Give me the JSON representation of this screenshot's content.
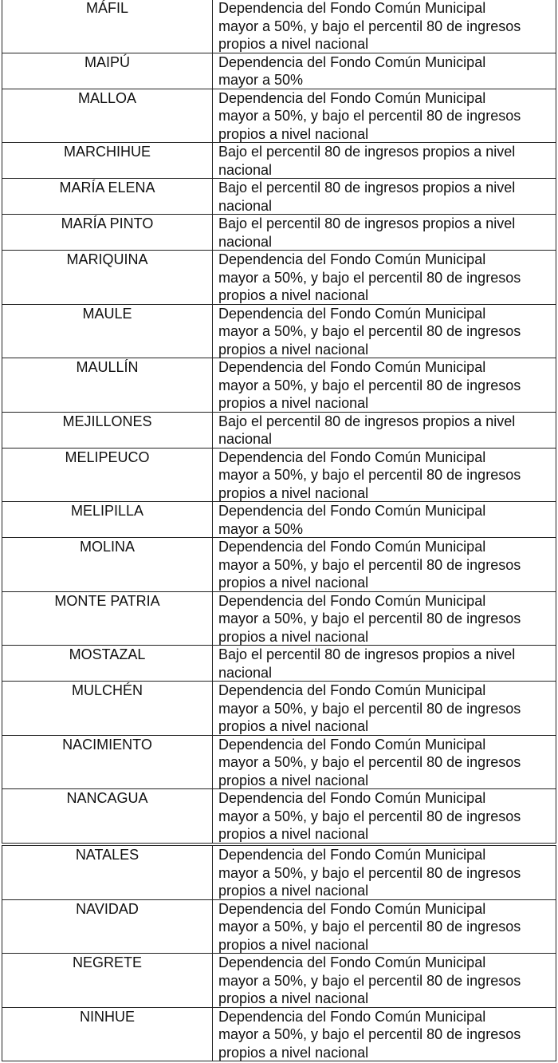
{
  "tables": [
    {
      "rows": [
        {
          "name": "MÁFIL",
          "lines": [
            "Dependencia del Fondo Común Municipal",
            "mayor a 50%, y bajo el percentil 80 de ingresos",
            "propios a nivel nacional"
          ]
        },
        {
          "name": "MAIPÚ",
          "lines": [
            "Dependencia del Fondo Común Municipal",
            "mayor a 50%"
          ]
        },
        {
          "name": "MALLOA",
          "lines": [
            "Dependencia del Fondo Común Municipal",
            "mayor a 50%, y bajo el percentil 80 de ingresos",
            "propios a nivel nacional"
          ]
        },
        {
          "name": "MARCHIHUE",
          "lines": [
            "Bajo el percentil 80 de ingresos propios a nivel",
            "nacional"
          ]
        },
        {
          "name": "MARÍA ELENA",
          "lines": [
            "Bajo el percentil 80 de ingresos propios a nivel",
            "nacional"
          ]
        },
        {
          "name": "MARÍA PINTO",
          "lines": [
            "Bajo el percentil 80 de ingresos propios a nivel",
            "nacional"
          ]
        },
        {
          "name": "MARIQUINA",
          "lines": [
            "Dependencia del Fondo Común Municipal",
            "mayor a 50%, y bajo el percentil 80 de ingresos",
            "propios a nivel nacional"
          ]
        },
        {
          "name": "MAULE",
          "lines": [
            "Dependencia del Fondo Común Municipal",
            "mayor a 50%, y bajo el percentil 80 de ingresos",
            "propios a nivel nacional"
          ]
        },
        {
          "name": "MAULLÍN",
          "lines": [
            "Dependencia del Fondo Común Municipal",
            "mayor a 50%, y bajo el percentil 80 de ingresos",
            "propios a nivel nacional"
          ]
        },
        {
          "name": "MEJILLONES",
          "lines": [
            "Bajo el percentil 80 de ingresos propios a nivel",
            "nacional"
          ]
        },
        {
          "name": "MELIPEUCO",
          "lines": [
            "Dependencia del Fondo Común Municipal",
            "mayor a 50%, y bajo el percentil 80 de ingresos",
            "propios a nivel nacional"
          ]
        },
        {
          "name": "MELIPILLA",
          "lines": [
            "Dependencia del Fondo Común Municipal",
            "mayor a 50%"
          ]
        },
        {
          "name": "MOLINA",
          "lines": [
            "Dependencia del Fondo Común Municipal",
            "mayor a 50%, y bajo el percentil 80 de ingresos",
            "propios a nivel nacional"
          ]
        },
        {
          "name": "MONTE PATRIA",
          "lines": [
            "Dependencia del Fondo Común Municipal",
            "mayor a 50%, y bajo el percentil 80 de ingresos",
            "propios a nivel nacional"
          ]
        },
        {
          "name": "MOSTAZAL",
          "lines": [
            "Bajo el percentil 80 de ingresos propios a nivel",
            "nacional"
          ]
        },
        {
          "name": "MULCHÉN",
          "lines": [
            "Dependencia del Fondo Común Municipal",
            "mayor a 50%, y bajo el percentil 80 de ingresos",
            "propios a nivel nacional"
          ]
        },
        {
          "name": "NACIMIENTO",
          "lines": [
            "Dependencia del Fondo Común Municipal",
            "mayor a 50%, y bajo el percentil 80 de ingresos",
            "propios a nivel nacional"
          ]
        },
        {
          "name": "NANCAGUA",
          "lines": [
            "Dependencia del Fondo Común Municipal",
            "mayor a 50%, y bajo el percentil 80 de ingresos",
            "propios a nivel nacional"
          ]
        }
      ]
    },
    {
      "rows": [
        {
          "name": "NATALES",
          "lines": [
            "Dependencia del Fondo Común Municipal",
            "mayor a 50%, y bajo el percentil 80 de ingresos",
            "propios a nivel nacional"
          ]
        },
        {
          "name": "NAVIDAD",
          "lines": [
            "Dependencia del Fondo Común Municipal",
            "mayor a 50%, y bajo el percentil 80 de ingresos",
            "propios a nivel nacional"
          ]
        },
        {
          "name": "NEGRETE",
          "lines": [
            "Dependencia del Fondo Común Municipal",
            "mayor a 50%, y bajo el percentil 80 de ingresos",
            "propios a nivel nacional"
          ]
        },
        {
          "name": "NINHUE",
          "lines": [
            "Dependencia del Fondo Común Municipal",
            "mayor a 50%, y bajo el percentil 80 de ingresos",
            "propios a nivel nacional"
          ]
        }
      ]
    }
  ]
}
